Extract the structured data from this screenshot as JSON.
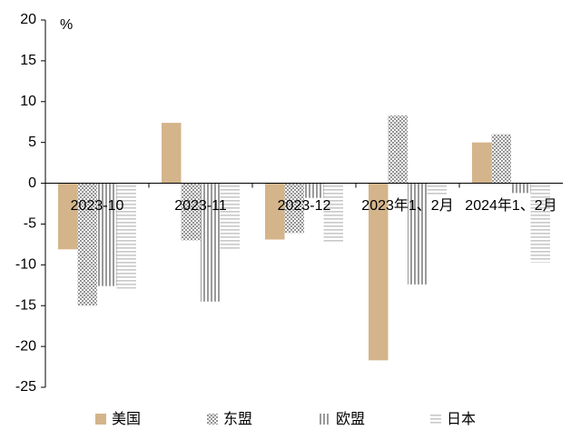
{
  "chart_data": {
    "type": "bar",
    "unit_label": "%",
    "categories": [
      "2023-10",
      "2023-11",
      "2023-12",
      "2023年1、2月",
      "2024年1、2月"
    ],
    "series": [
      {
        "name": "美国",
        "color": "#d4b48a",
        "pattern": "solid",
        "values": [
          -8.1,
          7.4,
          -6.9,
          -21.7,
          5.0
        ]
      },
      {
        "name": "东盟",
        "color": "#8c8c8c",
        "pattern": "dots",
        "values": [
          -15.0,
          -7.0,
          -6.1,
          8.3,
          6.0
        ]
      },
      {
        "name": "欧盟",
        "color": "#9a9a9a",
        "pattern": "vertical",
        "values": [
          -12.6,
          -14.5,
          -1.8,
          -12.4,
          -1.2
        ]
      },
      {
        "name": "日本",
        "color": "#c8c8c8",
        "pattern": "horizontal",
        "values": [
          -12.9,
          -8.1,
          -7.2,
          -1.5,
          -9.7
        ]
      }
    ],
    "ylim": [
      -25,
      20
    ],
    "yticks": [
      -25,
      -20,
      -15,
      -10,
      -5,
      0,
      5,
      10,
      15,
      20
    ]
  }
}
